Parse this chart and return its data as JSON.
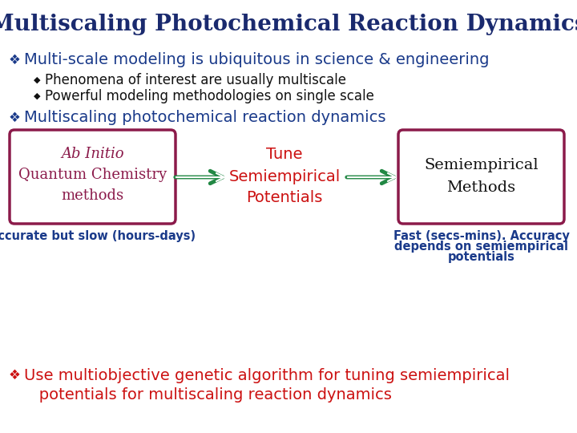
{
  "title": "Multiscaling Photochemical Reaction Dynamics",
  "title_color": "#1a2a6e",
  "title_fontsize": 20,
  "background_color": "#ffffff",
  "bullet1_text": "Multi-scale modeling is ubiquitous in science & engineering",
  "bullet_color": "#1a3a8a",
  "bullet_fontsize": 14,
  "sub1_text": "Phenomena of interest are usually multiscale",
  "sub2_text": "Powerful modeling methodologies on single scale",
  "sub_color": "#111111",
  "sub_fontsize": 12,
  "bullet2_text": "Multiscaling photochemical reaction dynamics",
  "box1_ab": "Ab Initio",
  "box1_qc": "Quantum Chemistry",
  "box1_m": "methods",
  "box_border_color": "#8b1a4a",
  "box1_text_color": "#8b1a4a",
  "tune_line1": "Tune",
  "tune_line2": "Semiempirical",
  "tune_line3": "Potentials",
  "tune_color": "#cc1111",
  "box3_line1": "Semiempirical",
  "box3_line2": "Methods",
  "box3_text_color": "#111111",
  "label1_text": "Accurate but slow (hours-days)",
  "label_color": "#1a3a8a",
  "label_fontsize": 10.5,
  "label2_line1": "Fast (secs-mins). Accuracy",
  "label2_line2": "depends on semiempirical",
  "label2_line3": "potentials",
  "bullet3_line1": "Use multiobjective genetic algorithm for tuning semiempirical",
  "bullet3_line2": "   potentials for multiscaling reaction dynamics",
  "bullet3_color": "#cc1111",
  "bullet3_fontsize": 14,
  "arrow_color": "#228844",
  "diamond_color": "#1a3a8a",
  "sub_diamond_color": "#111111"
}
